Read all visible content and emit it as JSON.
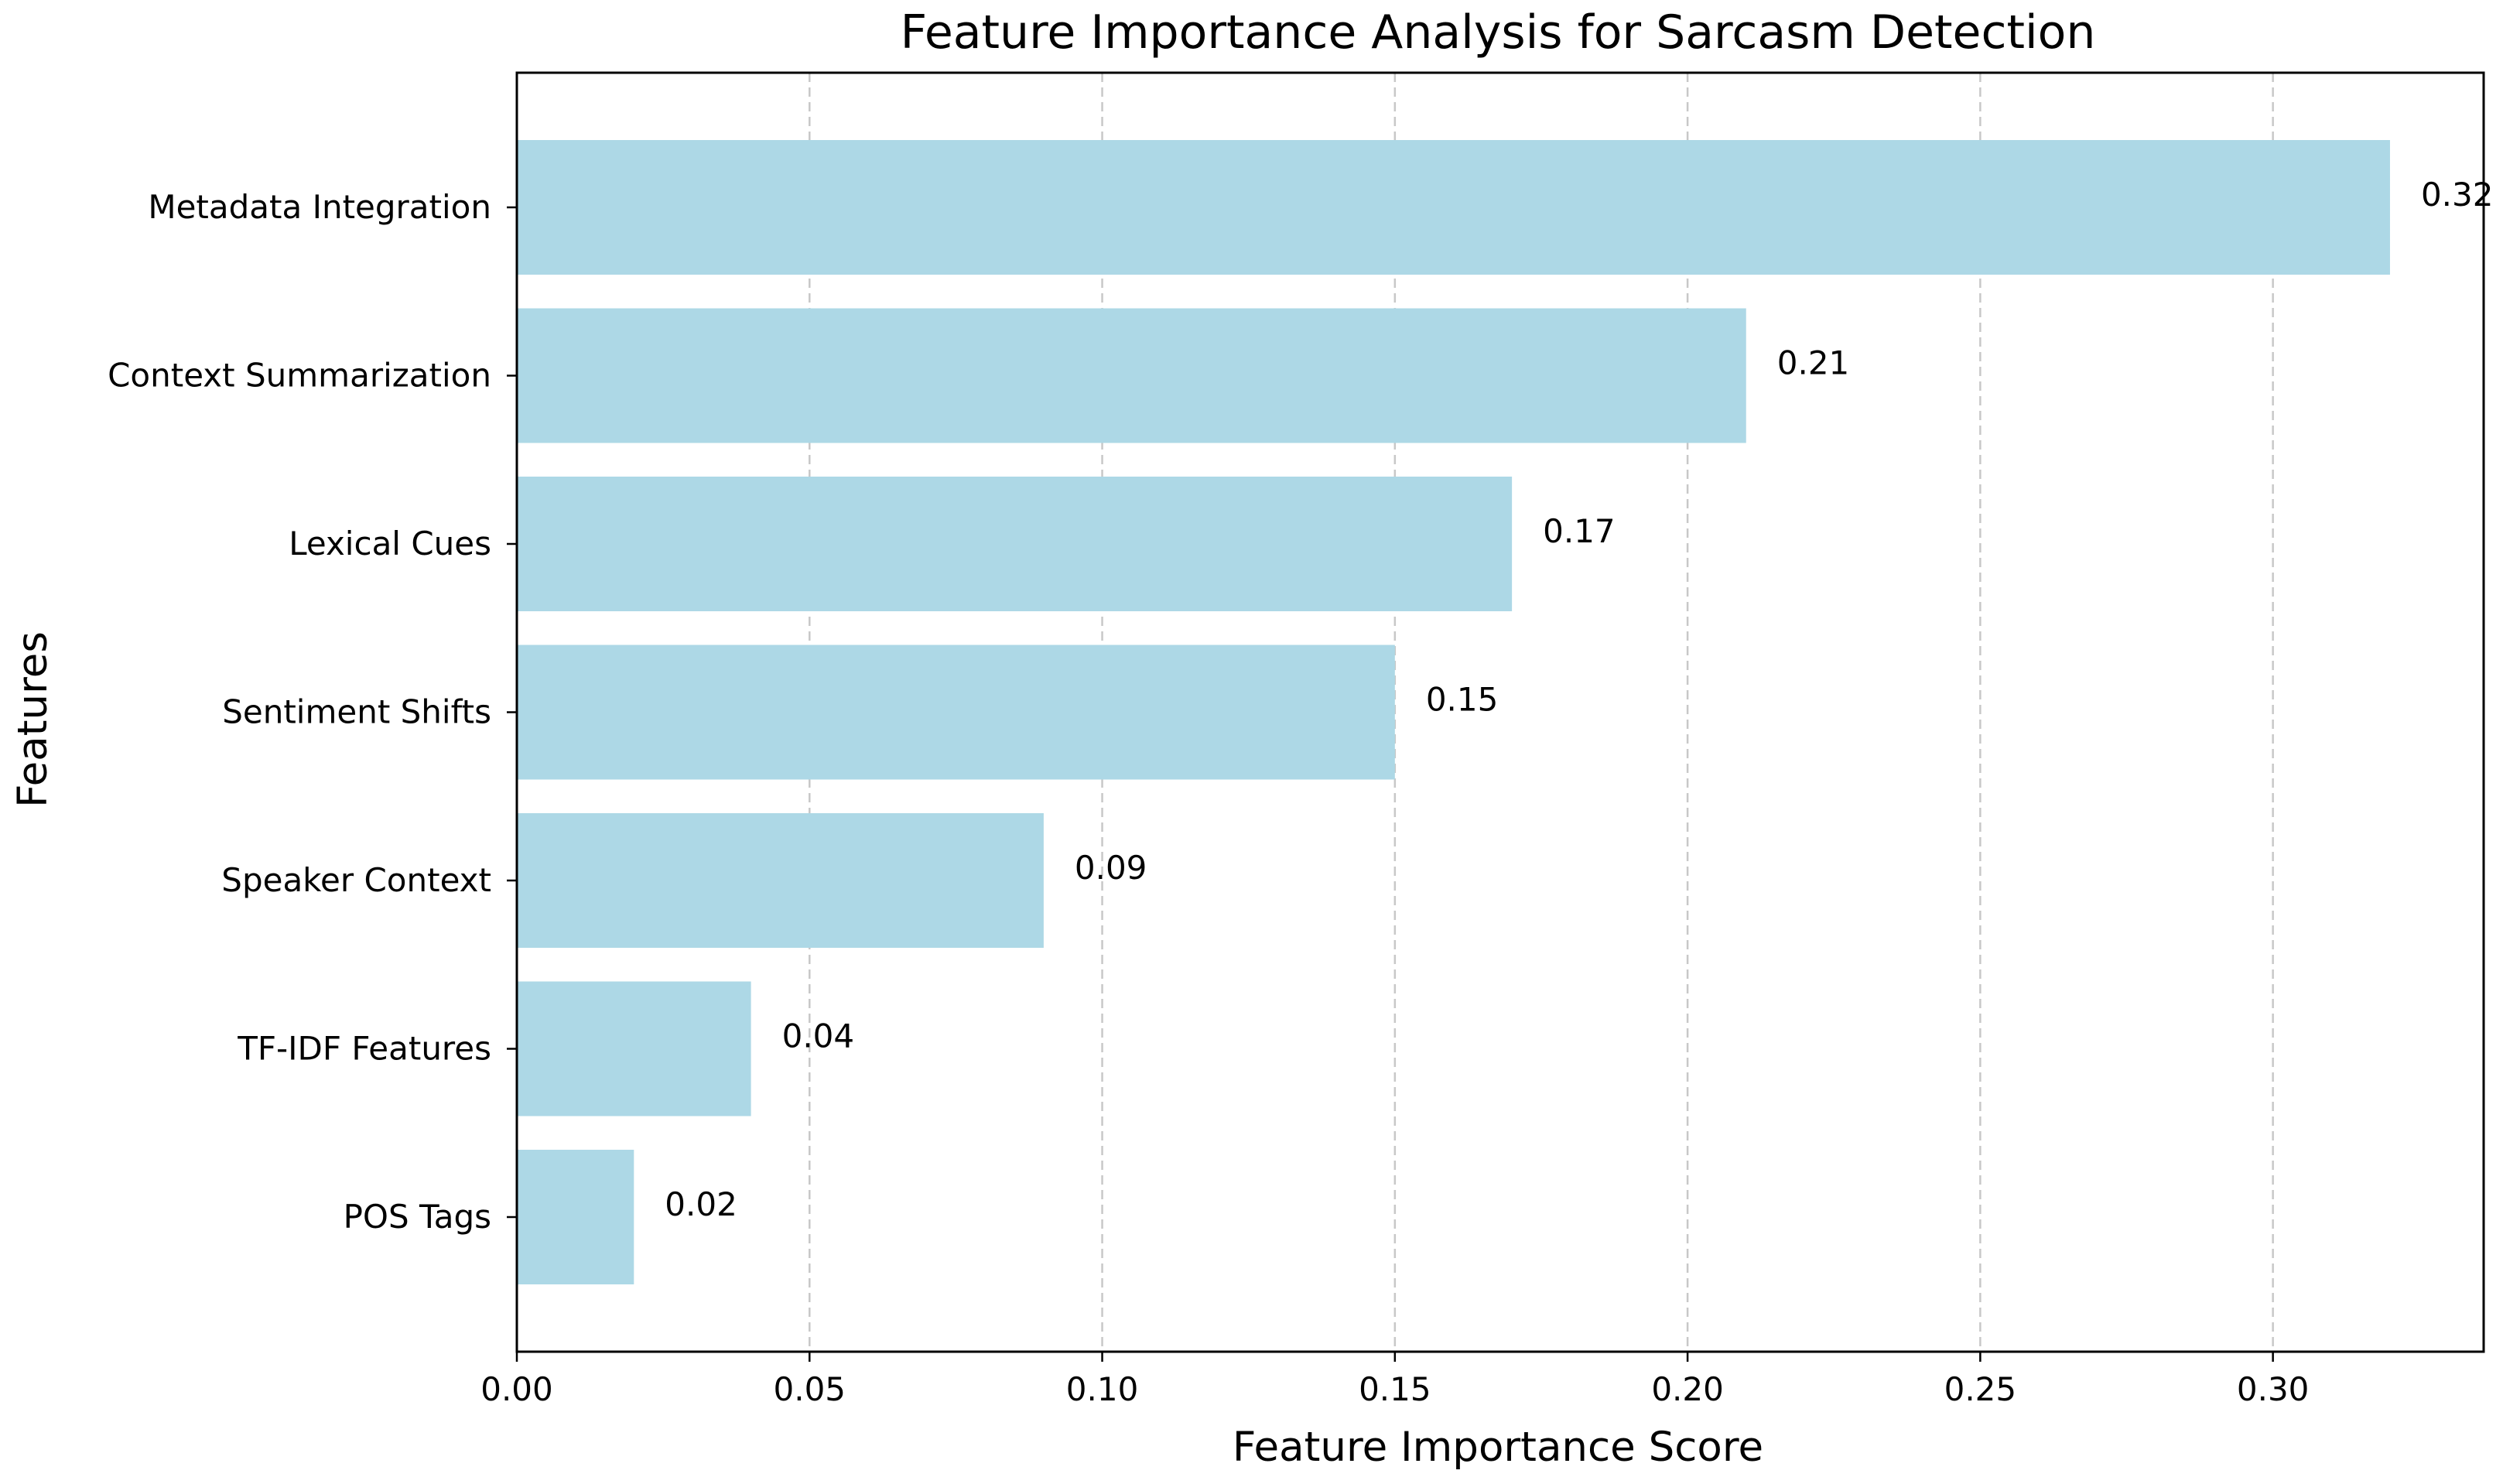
{
  "chart_data": {
    "type": "bar",
    "orientation": "horizontal",
    "title": "Feature Importance Analysis for Sarcasm Detection",
    "xlabel": "Feature Importance Score",
    "ylabel": "Features",
    "categories": [
      "Metadata Integration",
      "Context Summarization",
      "Lexical Cues",
      "Sentiment Shifts",
      "Speaker Context",
      "TF-IDF Features",
      "POS Tags"
    ],
    "values": [
      0.32,
      0.21,
      0.17,
      0.15,
      0.09,
      0.04,
      0.02
    ],
    "value_labels": [
      "0.32",
      "0.21",
      "0.17",
      "0.15",
      "0.09",
      "0.04",
      "0.02"
    ],
    "xlim": [
      0,
      0.336
    ],
    "xticks": [
      0.0,
      0.05,
      0.1,
      0.15,
      0.2,
      0.25,
      0.3
    ],
    "xtick_labels": [
      "0.00",
      "0.05",
      "0.10",
      "0.15",
      "0.20",
      "0.25",
      "0.30"
    ],
    "grid": "x-axis, dashed",
    "bar_color": "#add8e6"
  }
}
